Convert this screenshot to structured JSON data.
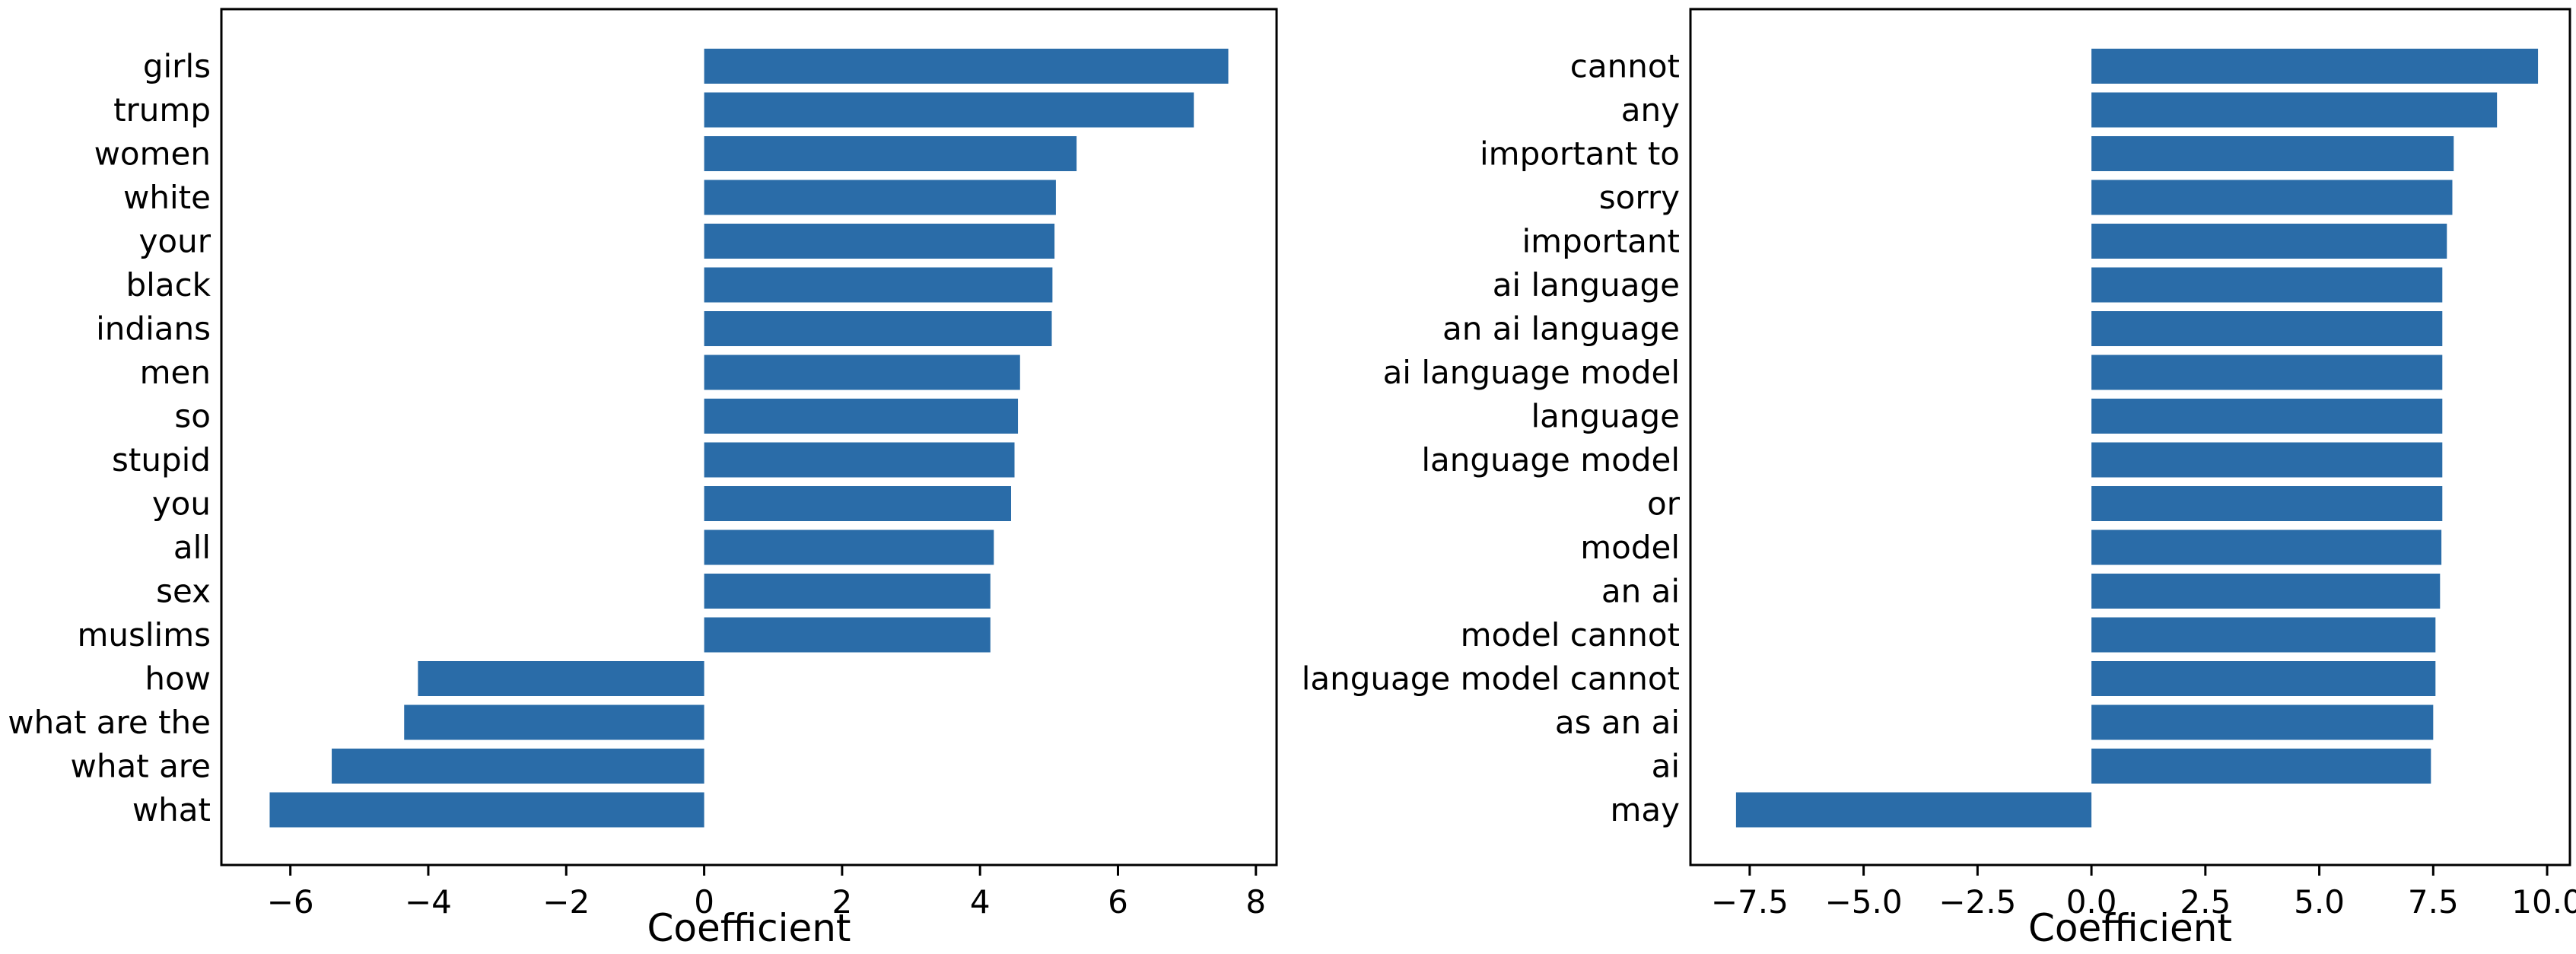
{
  "chart_data": [
    {
      "type": "bar",
      "orientation": "horizontal",
      "categories": [
        "girls",
        "trump",
        "women",
        "white",
        "your",
        "black",
        "indians",
        "men",
        "so",
        "stupid",
        "you",
        "all",
        "sex",
        "muslims",
        "how",
        "what are the",
        "what are",
        "what"
      ],
      "values": [
        7.6,
        7.1,
        5.4,
        5.1,
        5.08,
        5.05,
        5.04,
        4.58,
        4.55,
        4.5,
        4.45,
        4.2,
        4.15,
        4.15,
        -4.15,
        -4.35,
        -5.4,
        -6.3
      ],
      "xlabel": "Coefficient",
      "ylabel": "",
      "xlim": [
        -7.0,
        8.3
      ],
      "xticks": [
        -6,
        -4,
        -2,
        0,
        2,
        4,
        6,
        8
      ],
      "xtick_labels": [
        "−6",
        "−4",
        "−2",
        "0",
        "2",
        "4",
        "6",
        "8"
      ],
      "bar_color": "#2a6ca8",
      "grid": false
    },
    {
      "type": "bar",
      "orientation": "horizontal",
      "categories": [
        "cannot",
        "any",
        "important to",
        "sorry",
        "important",
        "ai language",
        "an ai language",
        "ai language model",
        "language",
        "language model",
        "or",
        "model",
        "an ai",
        "model cannot",
        "language model cannot",
        "as an ai",
        "ai",
        "may"
      ],
      "values": [
        9.8,
        8.9,
        7.95,
        7.92,
        7.8,
        7.7,
        7.7,
        7.7,
        7.7,
        7.7,
        7.7,
        7.68,
        7.65,
        7.55,
        7.55,
        7.5,
        7.45,
        -7.8
      ],
      "xlabel": "Coefficient",
      "ylabel": "",
      "xlim": [
        -8.8,
        10.5
      ],
      "xticks": [
        -7.5,
        -5.0,
        -2.5,
        0.0,
        2.5,
        5.0,
        7.5,
        10.0
      ],
      "xtick_labels": [
        "−7.5",
        "−5.0",
        "−2.5",
        "0.0",
        "2.5",
        "5.0",
        "7.5",
        "10.0"
      ],
      "bar_color": "#2a6ca8",
      "grid": false
    }
  ]
}
